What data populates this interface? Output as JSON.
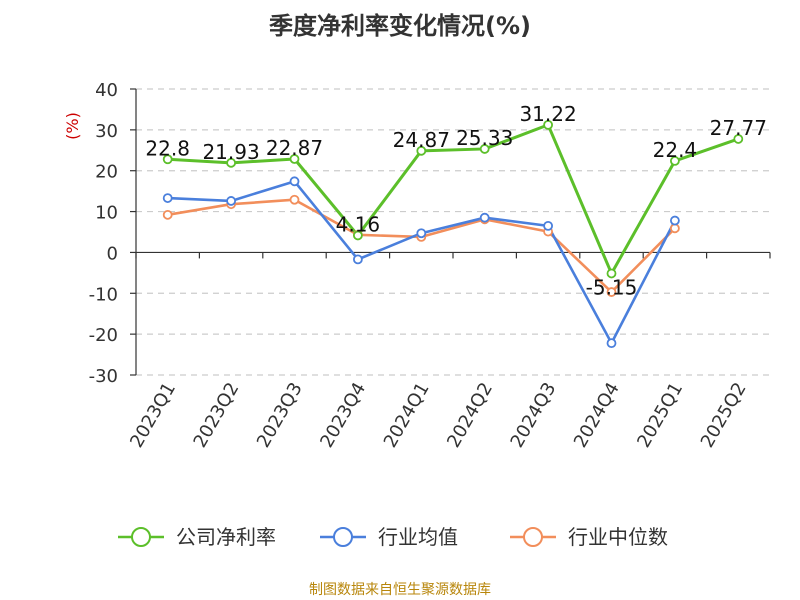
{
  "chart_data": {
    "type": "line",
    "title": "季度净利率变化情况(%)",
    "ylabel": "(%)",
    "ylim": [
      -30,
      40
    ],
    "yticks": [
      40,
      30,
      20,
      10,
      0,
      -10,
      -20,
      -30
    ],
    "grid": true,
    "legend_position": "bottom",
    "categories": [
      "2023Q1",
      "2023Q2",
      "2023Q3",
      "2023Q4",
      "2024Q1",
      "2024Q2",
      "2024Q3",
      "2024Q4",
      "2025Q1",
      "2025Q2"
    ],
    "series": [
      {
        "name": "公司净利率",
        "color": "#5cbf2a",
        "values": [
          22.8,
          21.93,
          22.87,
          4.16,
          24.87,
          25.33,
          31.22,
          -5.15,
          22.4,
          27.77
        ],
        "labels": [
          "22.8",
          "21.93",
          "22.87",
          "4.16",
          "24.87",
          "25.33",
          "31.22",
          "-5.15",
          "22.4",
          "27.77"
        ]
      },
      {
        "name": "行业均值",
        "color": "#4a7fdc",
        "values": [
          13.3,
          12.6,
          17.4,
          -1.7,
          4.7,
          8.5,
          6.5,
          -22.2,
          7.8,
          null
        ]
      },
      {
        "name": "行业中位数",
        "color": "#f28e5b",
        "values": [
          9.2,
          11.8,
          12.9,
          4.3,
          3.8,
          8.1,
          5.1,
          -9.7,
          5.9,
          null
        ]
      }
    ],
    "source": "制图数据来自恒生聚源数据库"
  }
}
